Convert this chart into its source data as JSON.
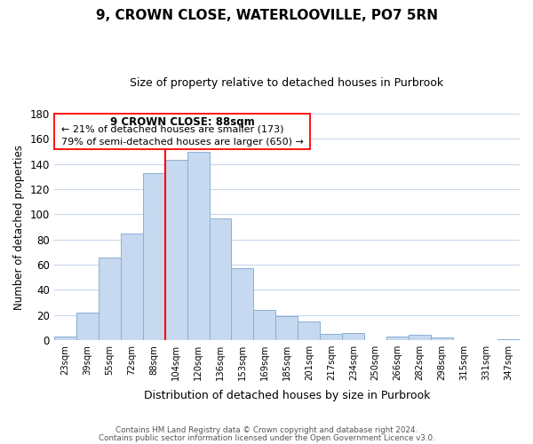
{
  "title": "9, CROWN CLOSE, WATERLOOVILLE, PO7 5RN",
  "subtitle": "Size of property relative to detached houses in Purbrook",
  "xlabel": "Distribution of detached houses by size in Purbrook",
  "ylabel": "Number of detached properties",
  "bin_labels": [
    "23sqm",
    "39sqm",
    "55sqm",
    "72sqm",
    "88sqm",
    "104sqm",
    "120sqm",
    "136sqm",
    "153sqm",
    "169sqm",
    "185sqm",
    "201sqm",
    "217sqm",
    "234sqm",
    "250sqm",
    "266sqm",
    "282sqm",
    "298sqm",
    "315sqm",
    "331sqm",
    "347sqm"
  ],
  "bar_values": [
    3,
    22,
    66,
    85,
    133,
    143,
    150,
    97,
    57,
    24,
    19,
    15,
    5,
    6,
    0,
    3,
    4,
    2,
    0,
    0,
    1
  ],
  "bar_color": "#c6d9f0",
  "bar_edge_color": "#8bafd4",
  "vline_color": "red",
  "vline_index": 4,
  "annotation_title": "9 CROWN CLOSE: 88sqm",
  "annotation_line1": "← 21% of detached houses are smaller (173)",
  "annotation_line2": "79% of semi-detached houses are larger (650) →",
  "ylim": [
    0,
    180
  ],
  "yticks": [
    0,
    20,
    40,
    60,
    80,
    100,
    120,
    140,
    160,
    180
  ],
  "footer_line1": "Contains HM Land Registry data © Crown copyright and database right 2024.",
  "footer_line2": "Contains public sector information licensed under the Open Government Licence v3.0.",
  "background_color": "#ffffff",
  "grid_color": "#c8d8ec"
}
